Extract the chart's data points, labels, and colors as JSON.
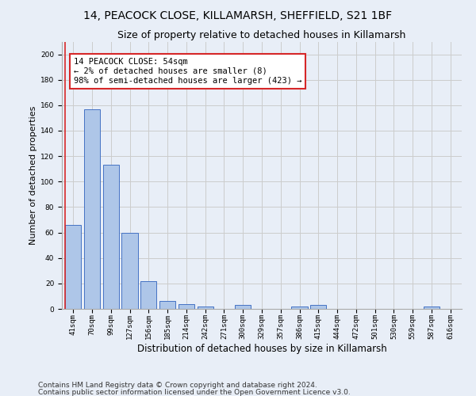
{
  "title_line1": "14, PEACOCK CLOSE, KILLAMARSH, SHEFFIELD, S21 1BF",
  "title_line2": "Size of property relative to detached houses in Killamarsh",
  "xlabel": "Distribution of detached houses by size in Killamarsh",
  "ylabel": "Number of detached properties",
  "bar_labels": [
    "41sqm",
    "70sqm",
    "99sqm",
    "127sqm",
    "156sqm",
    "185sqm",
    "214sqm",
    "242sqm",
    "271sqm",
    "300sqm",
    "329sqm",
    "357sqm",
    "386sqm",
    "415sqm",
    "444sqm",
    "472sqm",
    "501sqm",
    "530sqm",
    "559sqm",
    "587sqm",
    "616sqm"
  ],
  "bar_values": [
    66,
    157,
    113,
    60,
    22,
    6,
    4,
    2,
    0,
    3,
    0,
    0,
    2,
    3,
    0,
    0,
    0,
    0,
    0,
    2,
    0
  ],
  "bar_color": "#aec6e8",
  "bar_edge_color": "#4472c4",
  "highlight_color": "#d62728",
  "annotation_text": "14 PEACOCK CLOSE: 54sqm\n← 2% of detached houses are smaller (8)\n98% of semi-detached houses are larger (423) →",
  "annotation_box_color": "#ffffff",
  "annotation_box_edge": "#d62728",
  "ylim": [
    0,
    210
  ],
  "yticks": [
    0,
    20,
    40,
    60,
    80,
    100,
    120,
    140,
    160,
    180,
    200
  ],
  "grid_color": "#cccccc",
  "background_color": "#e8eef7",
  "footnote_line1": "Contains HM Land Registry data © Crown copyright and database right 2024.",
  "footnote_line2": "Contains public sector information licensed under the Open Government Licence v3.0.",
  "title_fontsize": 10,
  "subtitle_fontsize": 9,
  "ylabel_fontsize": 8,
  "xlabel_fontsize": 8.5,
  "tick_fontsize": 6.5,
  "annotation_fontsize": 7.5,
  "footnote_fontsize": 6.5
}
